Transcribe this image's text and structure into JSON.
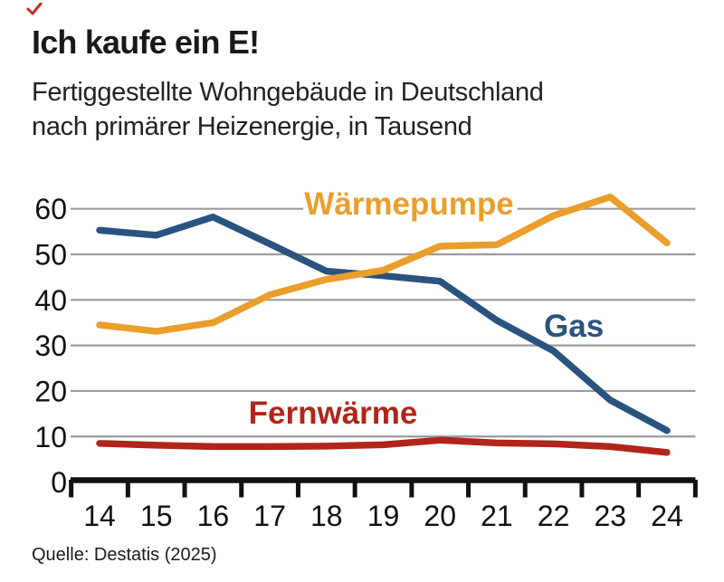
{
  "header": {
    "title": "Ich kaufe ein E!",
    "subtitle_lines": [
      "Fertiggestellte Wohngebäude in Deutschland",
      "nach primärer Heizenergie, in Tausend"
    ]
  },
  "footer": {
    "source": "Quelle: Destatis (2025)"
  },
  "decoration": {
    "corner_mark_color": "#cc2a1e"
  },
  "chart_data": {
    "type": "line",
    "title": "Ich kaufe ein E!",
    "subtitle": "Fertiggestellte Wohngebäude in Deutschland nach primärer Heizenergie, in Tausend",
    "categories": [
      "14",
      "15",
      "16",
      "17",
      "18",
      "19",
      "20",
      "21",
      "22",
      "23",
      "24"
    ],
    "series": [
      {
        "name": "Wärmepumpe",
        "color": "#EA9E2B",
        "values": [
          34.5,
          33.1,
          35.0,
          41.1,
          44.5,
          46.5,
          51.8,
          52.1,
          58.5,
          62.6,
          52.5
        ]
      },
      {
        "name": "Gas",
        "color": "#2A5380",
        "values": [
          55.3,
          54.2,
          58.2,
          52.3,
          46.3,
          45.3,
          44.1,
          35.5,
          28.8,
          18.0,
          11.3
        ]
      },
      {
        "name": "Fernwärme",
        "color": "#B1251A",
        "values": [
          8.5,
          8.1,
          7.8,
          7.8,
          7.9,
          8.2,
          9.2,
          8.6,
          8.4,
          7.8,
          6.5
        ]
      }
    ],
    "xlabel": "",
    "ylabel": "",
    "ylim": [
      0,
      65
    ],
    "yticks": [
      0,
      10,
      20,
      30,
      40,
      50,
      60
    ],
    "grid": true,
    "gridline_color": "#9B9B9B",
    "axis_color": "#111111",
    "legend_position": "inline-labels",
    "source": "Quelle: Destatis (2025)"
  }
}
